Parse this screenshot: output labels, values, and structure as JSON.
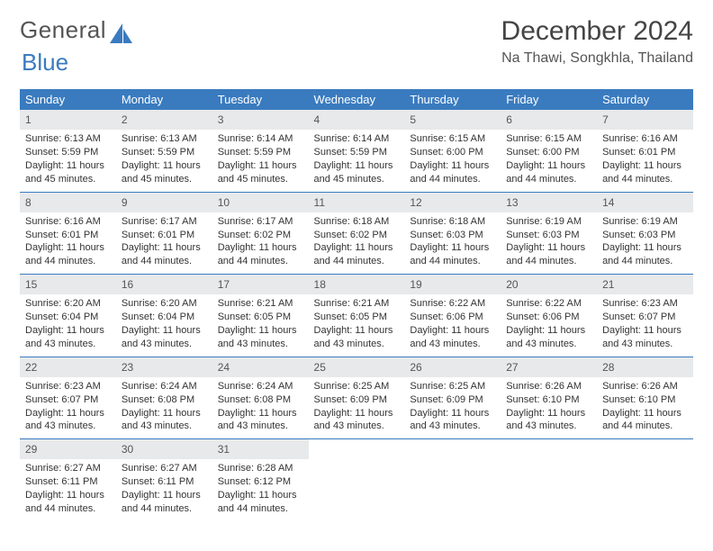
{
  "brand": {
    "part1": "General",
    "part2": "Blue"
  },
  "title": "December 2024",
  "location": "Na Thawi, Songkhla, Thailand",
  "weekdays": [
    "Sunday",
    "Monday",
    "Tuesday",
    "Wednesday",
    "Thursday",
    "Friday",
    "Saturday"
  ],
  "colors": {
    "header_bg": "#3a7bbf",
    "header_text": "#ffffff",
    "daynum_bg": "#e7e9eb",
    "row_border": "#3a7bbf"
  },
  "weeks": [
    [
      {
        "n": "1",
        "sr": "Sunrise: 6:13 AM",
        "ss": "Sunset: 5:59 PM",
        "d1": "Daylight: 11 hours",
        "d2": "and 45 minutes."
      },
      {
        "n": "2",
        "sr": "Sunrise: 6:13 AM",
        "ss": "Sunset: 5:59 PM",
        "d1": "Daylight: 11 hours",
        "d2": "and 45 minutes."
      },
      {
        "n": "3",
        "sr": "Sunrise: 6:14 AM",
        "ss": "Sunset: 5:59 PM",
        "d1": "Daylight: 11 hours",
        "d2": "and 45 minutes."
      },
      {
        "n": "4",
        "sr": "Sunrise: 6:14 AM",
        "ss": "Sunset: 5:59 PM",
        "d1": "Daylight: 11 hours",
        "d2": "and 45 minutes."
      },
      {
        "n": "5",
        "sr": "Sunrise: 6:15 AM",
        "ss": "Sunset: 6:00 PM",
        "d1": "Daylight: 11 hours",
        "d2": "and 44 minutes."
      },
      {
        "n": "6",
        "sr": "Sunrise: 6:15 AM",
        "ss": "Sunset: 6:00 PM",
        "d1": "Daylight: 11 hours",
        "d2": "and 44 minutes."
      },
      {
        "n": "7",
        "sr": "Sunrise: 6:16 AM",
        "ss": "Sunset: 6:01 PM",
        "d1": "Daylight: 11 hours",
        "d2": "and 44 minutes."
      }
    ],
    [
      {
        "n": "8",
        "sr": "Sunrise: 6:16 AM",
        "ss": "Sunset: 6:01 PM",
        "d1": "Daylight: 11 hours",
        "d2": "and 44 minutes."
      },
      {
        "n": "9",
        "sr": "Sunrise: 6:17 AM",
        "ss": "Sunset: 6:01 PM",
        "d1": "Daylight: 11 hours",
        "d2": "and 44 minutes."
      },
      {
        "n": "10",
        "sr": "Sunrise: 6:17 AM",
        "ss": "Sunset: 6:02 PM",
        "d1": "Daylight: 11 hours",
        "d2": "and 44 minutes."
      },
      {
        "n": "11",
        "sr": "Sunrise: 6:18 AM",
        "ss": "Sunset: 6:02 PM",
        "d1": "Daylight: 11 hours",
        "d2": "and 44 minutes."
      },
      {
        "n": "12",
        "sr": "Sunrise: 6:18 AM",
        "ss": "Sunset: 6:03 PM",
        "d1": "Daylight: 11 hours",
        "d2": "and 44 minutes."
      },
      {
        "n": "13",
        "sr": "Sunrise: 6:19 AM",
        "ss": "Sunset: 6:03 PM",
        "d1": "Daylight: 11 hours",
        "d2": "and 44 minutes."
      },
      {
        "n": "14",
        "sr": "Sunrise: 6:19 AM",
        "ss": "Sunset: 6:03 PM",
        "d1": "Daylight: 11 hours",
        "d2": "and 44 minutes."
      }
    ],
    [
      {
        "n": "15",
        "sr": "Sunrise: 6:20 AM",
        "ss": "Sunset: 6:04 PM",
        "d1": "Daylight: 11 hours",
        "d2": "and 43 minutes."
      },
      {
        "n": "16",
        "sr": "Sunrise: 6:20 AM",
        "ss": "Sunset: 6:04 PM",
        "d1": "Daylight: 11 hours",
        "d2": "and 43 minutes."
      },
      {
        "n": "17",
        "sr": "Sunrise: 6:21 AM",
        "ss": "Sunset: 6:05 PM",
        "d1": "Daylight: 11 hours",
        "d2": "and 43 minutes."
      },
      {
        "n": "18",
        "sr": "Sunrise: 6:21 AM",
        "ss": "Sunset: 6:05 PM",
        "d1": "Daylight: 11 hours",
        "d2": "and 43 minutes."
      },
      {
        "n": "19",
        "sr": "Sunrise: 6:22 AM",
        "ss": "Sunset: 6:06 PM",
        "d1": "Daylight: 11 hours",
        "d2": "and 43 minutes."
      },
      {
        "n": "20",
        "sr": "Sunrise: 6:22 AM",
        "ss": "Sunset: 6:06 PM",
        "d1": "Daylight: 11 hours",
        "d2": "and 43 minutes."
      },
      {
        "n": "21",
        "sr": "Sunrise: 6:23 AM",
        "ss": "Sunset: 6:07 PM",
        "d1": "Daylight: 11 hours",
        "d2": "and 43 minutes."
      }
    ],
    [
      {
        "n": "22",
        "sr": "Sunrise: 6:23 AM",
        "ss": "Sunset: 6:07 PM",
        "d1": "Daylight: 11 hours",
        "d2": "and 43 minutes."
      },
      {
        "n": "23",
        "sr": "Sunrise: 6:24 AM",
        "ss": "Sunset: 6:08 PM",
        "d1": "Daylight: 11 hours",
        "d2": "and 43 minutes."
      },
      {
        "n": "24",
        "sr": "Sunrise: 6:24 AM",
        "ss": "Sunset: 6:08 PM",
        "d1": "Daylight: 11 hours",
        "d2": "and 43 minutes."
      },
      {
        "n": "25",
        "sr": "Sunrise: 6:25 AM",
        "ss": "Sunset: 6:09 PM",
        "d1": "Daylight: 11 hours",
        "d2": "and 43 minutes."
      },
      {
        "n": "26",
        "sr": "Sunrise: 6:25 AM",
        "ss": "Sunset: 6:09 PM",
        "d1": "Daylight: 11 hours",
        "d2": "and 43 minutes."
      },
      {
        "n": "27",
        "sr": "Sunrise: 6:26 AM",
        "ss": "Sunset: 6:10 PM",
        "d1": "Daylight: 11 hours",
        "d2": "and 43 minutes."
      },
      {
        "n": "28",
        "sr": "Sunrise: 6:26 AM",
        "ss": "Sunset: 6:10 PM",
        "d1": "Daylight: 11 hours",
        "d2": "and 44 minutes."
      }
    ],
    [
      {
        "n": "29",
        "sr": "Sunrise: 6:27 AM",
        "ss": "Sunset: 6:11 PM",
        "d1": "Daylight: 11 hours",
        "d2": "and 44 minutes."
      },
      {
        "n": "30",
        "sr": "Sunrise: 6:27 AM",
        "ss": "Sunset: 6:11 PM",
        "d1": "Daylight: 11 hours",
        "d2": "and 44 minutes."
      },
      {
        "n": "31",
        "sr": "Sunrise: 6:28 AM",
        "ss": "Sunset: 6:12 PM",
        "d1": "Daylight: 11 hours",
        "d2": "and 44 minutes."
      },
      {
        "empty": true
      },
      {
        "empty": true
      },
      {
        "empty": true
      },
      {
        "empty": true
      }
    ]
  ]
}
